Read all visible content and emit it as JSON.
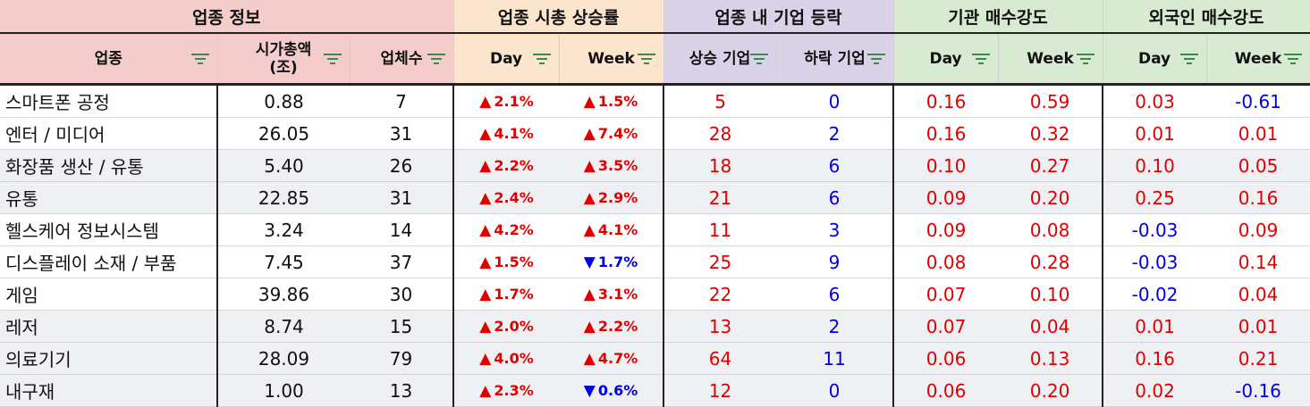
{
  "colors": {
    "up": "#e00000",
    "down": "#0000e0"
  },
  "groups": {
    "info": "업종 정보",
    "cap": "업종 시총 상승률",
    "adv": "업종 내 기업 등락",
    "inst": "기관 매수강도",
    "foreign": "외국인 매수강도"
  },
  "columns": {
    "sector": "업종",
    "mcap": "시가총액\n(조)",
    "count": "업체수",
    "cap_day": "Day",
    "cap_week": "Week",
    "rise": "상승 기업",
    "fall": "하락 기업",
    "inst_day": "Day",
    "inst_week": "Week",
    "for_day": "Day",
    "for_week": "Week"
  },
  "filter_icon": "filter-lines-icon",
  "rows": [
    {
      "sector": "스마트폰 공정",
      "mcap": "0.88",
      "count": "7",
      "cap_day": "2.1%",
      "cap_day_dir": "up",
      "cap_week": "1.5%",
      "cap_week_dir": "up",
      "rise": "5",
      "fall": "0",
      "inst_day": "0.16",
      "inst_week": "0.59",
      "for_day": "0.03",
      "for_week": "-0.61"
    },
    {
      "sector": "엔터 / 미디어",
      "mcap": "26.05",
      "count": "31",
      "cap_day": "4.1%",
      "cap_day_dir": "up",
      "cap_week": "7.4%",
      "cap_week_dir": "up",
      "rise": "28",
      "fall": "2",
      "inst_day": "0.16",
      "inst_week": "0.32",
      "for_day": "0.01",
      "for_week": "0.01"
    },
    {
      "sector": "화장품 생산 / 유통",
      "mcap": "5.40",
      "count": "26",
      "cap_day": "2.2%",
      "cap_day_dir": "up",
      "cap_week": "3.5%",
      "cap_week_dir": "up",
      "rise": "18",
      "fall": "6",
      "inst_day": "0.10",
      "inst_week": "0.27",
      "for_day": "0.10",
      "for_week": "0.05"
    },
    {
      "sector": "유통",
      "mcap": "22.85",
      "count": "31",
      "cap_day": "2.4%",
      "cap_day_dir": "up",
      "cap_week": "2.9%",
      "cap_week_dir": "up",
      "rise": "21",
      "fall": "6",
      "inst_day": "0.09",
      "inst_week": "0.20",
      "for_day": "0.25",
      "for_week": "0.16"
    },
    {
      "sector": "헬스케어 정보시스템",
      "mcap": "3.24",
      "count": "14",
      "cap_day": "4.2%",
      "cap_day_dir": "up",
      "cap_week": "4.1%",
      "cap_week_dir": "up",
      "rise": "11",
      "fall": "3",
      "inst_day": "0.09",
      "inst_week": "0.08",
      "for_day": "-0.03",
      "for_week": "0.09"
    },
    {
      "sector": "디스플레이 소재 / 부품",
      "mcap": "7.45",
      "count": "37",
      "cap_day": "1.5%",
      "cap_day_dir": "up",
      "cap_week": "1.7%",
      "cap_week_dir": "down",
      "rise": "25",
      "fall": "9",
      "inst_day": "0.08",
      "inst_week": "0.28",
      "for_day": "-0.03",
      "for_week": "0.14"
    },
    {
      "sector": "게임",
      "mcap": "39.86",
      "count": "30",
      "cap_day": "1.7%",
      "cap_day_dir": "up",
      "cap_week": "3.1%",
      "cap_week_dir": "up",
      "rise": "22",
      "fall": "6",
      "inst_day": "0.07",
      "inst_week": "0.10",
      "for_day": "-0.02",
      "for_week": "0.04"
    },
    {
      "sector": "레저",
      "mcap": "8.74",
      "count": "15",
      "cap_day": "2.0%",
      "cap_day_dir": "up",
      "cap_week": "2.2%",
      "cap_week_dir": "up",
      "rise": "13",
      "fall": "2",
      "inst_day": "0.07",
      "inst_week": "0.04",
      "for_day": "0.01",
      "for_week": "0.01"
    },
    {
      "sector": "의료기기",
      "mcap": "28.09",
      "count": "79",
      "cap_day": "4.0%",
      "cap_day_dir": "up",
      "cap_week": "4.7%",
      "cap_week_dir": "up",
      "rise": "64",
      "fall": "11",
      "inst_day": "0.06",
      "inst_week": "0.13",
      "for_day": "0.16",
      "for_week": "0.21"
    },
    {
      "sector": "내구재",
      "mcap": "1.00",
      "count": "13",
      "cap_day": "2.3%",
      "cap_day_dir": "up",
      "cap_week": "0.6%",
      "cap_week_dir": "down",
      "rise": "12",
      "fall": "0",
      "inst_day": "0.06",
      "inst_week": "0.20",
      "for_day": "0.02",
      "for_week": "-0.16"
    }
  ]
}
